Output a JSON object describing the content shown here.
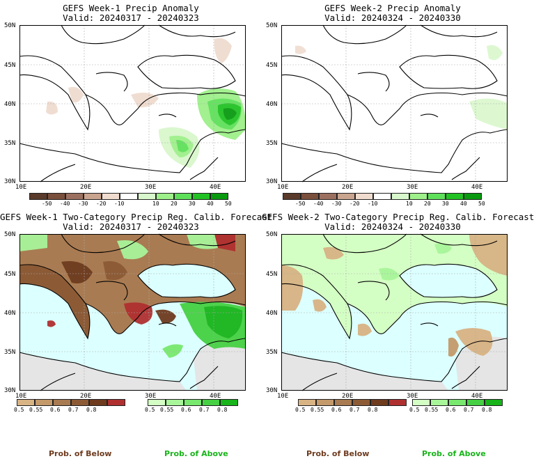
{
  "panels": [
    {
      "title": "GEFS Week-1 Precip Anomaly",
      "valid": "Valid: 20240317 - 20240323"
    },
    {
      "title": "GEFS Week-2 Precip Anomaly",
      "valid": "Valid: 20240324 - 20240330"
    },
    {
      "title": "GEFS Week-1 Two-Category Precip Reg. Calib. Forecast",
      "valid": "Valid: 20240317 - 20240323"
    },
    {
      "title": "GEFS Week-2 Two-Category Precip Reg. Calib. Forecast",
      "valid": "Valid: 20240324 - 20240330"
    }
  ],
  "axes": {
    "lat_labels": [
      "50N",
      "45N",
      "40N",
      "35N",
      "30N"
    ],
    "lon_labels": [
      "10E",
      "20E",
      "30E",
      "40E"
    ]
  },
  "anomaly_legend": {
    "ticks": [
      "-50",
      "-40",
      "-30",
      "-20",
      "-10",
      "10",
      "20",
      "30",
      "40",
      "50"
    ],
    "colors": [
      "#5a3a2a",
      "#7a4f3c",
      "#9c7060",
      "#c9a48f",
      "#f0dccf",
      "#ffffff",
      "#d9f7cc",
      "#9ef08a",
      "#5fe05a",
      "#22c224",
      "#0a9a10"
    ]
  },
  "prob_legend_below": {
    "ticks": [
      "0.5",
      "0.55",
      "0.6",
      "0.7",
      "0.8"
    ],
    "colors": [
      "#d8b384",
      "#c49a6a",
      "#a97b52",
      "#8c5b36",
      "#6e3b1f",
      "#b03030"
    ]
  },
  "prob_legend_above": {
    "ticks": [
      "0.5",
      "0.55",
      "0.6",
      "0.7",
      "0.8"
    ],
    "colors": [
      "#d4ffc4",
      "#a8f59a",
      "#78e86e",
      "#46d043",
      "#18b41a"
    ]
  },
  "labels": {
    "prob_below": "Prob. of Below",
    "prob_above": "Prob. of Above"
  },
  "colors": {
    "sea": "#dcffff",
    "land_gray": "#e5e5e5"
  }
}
